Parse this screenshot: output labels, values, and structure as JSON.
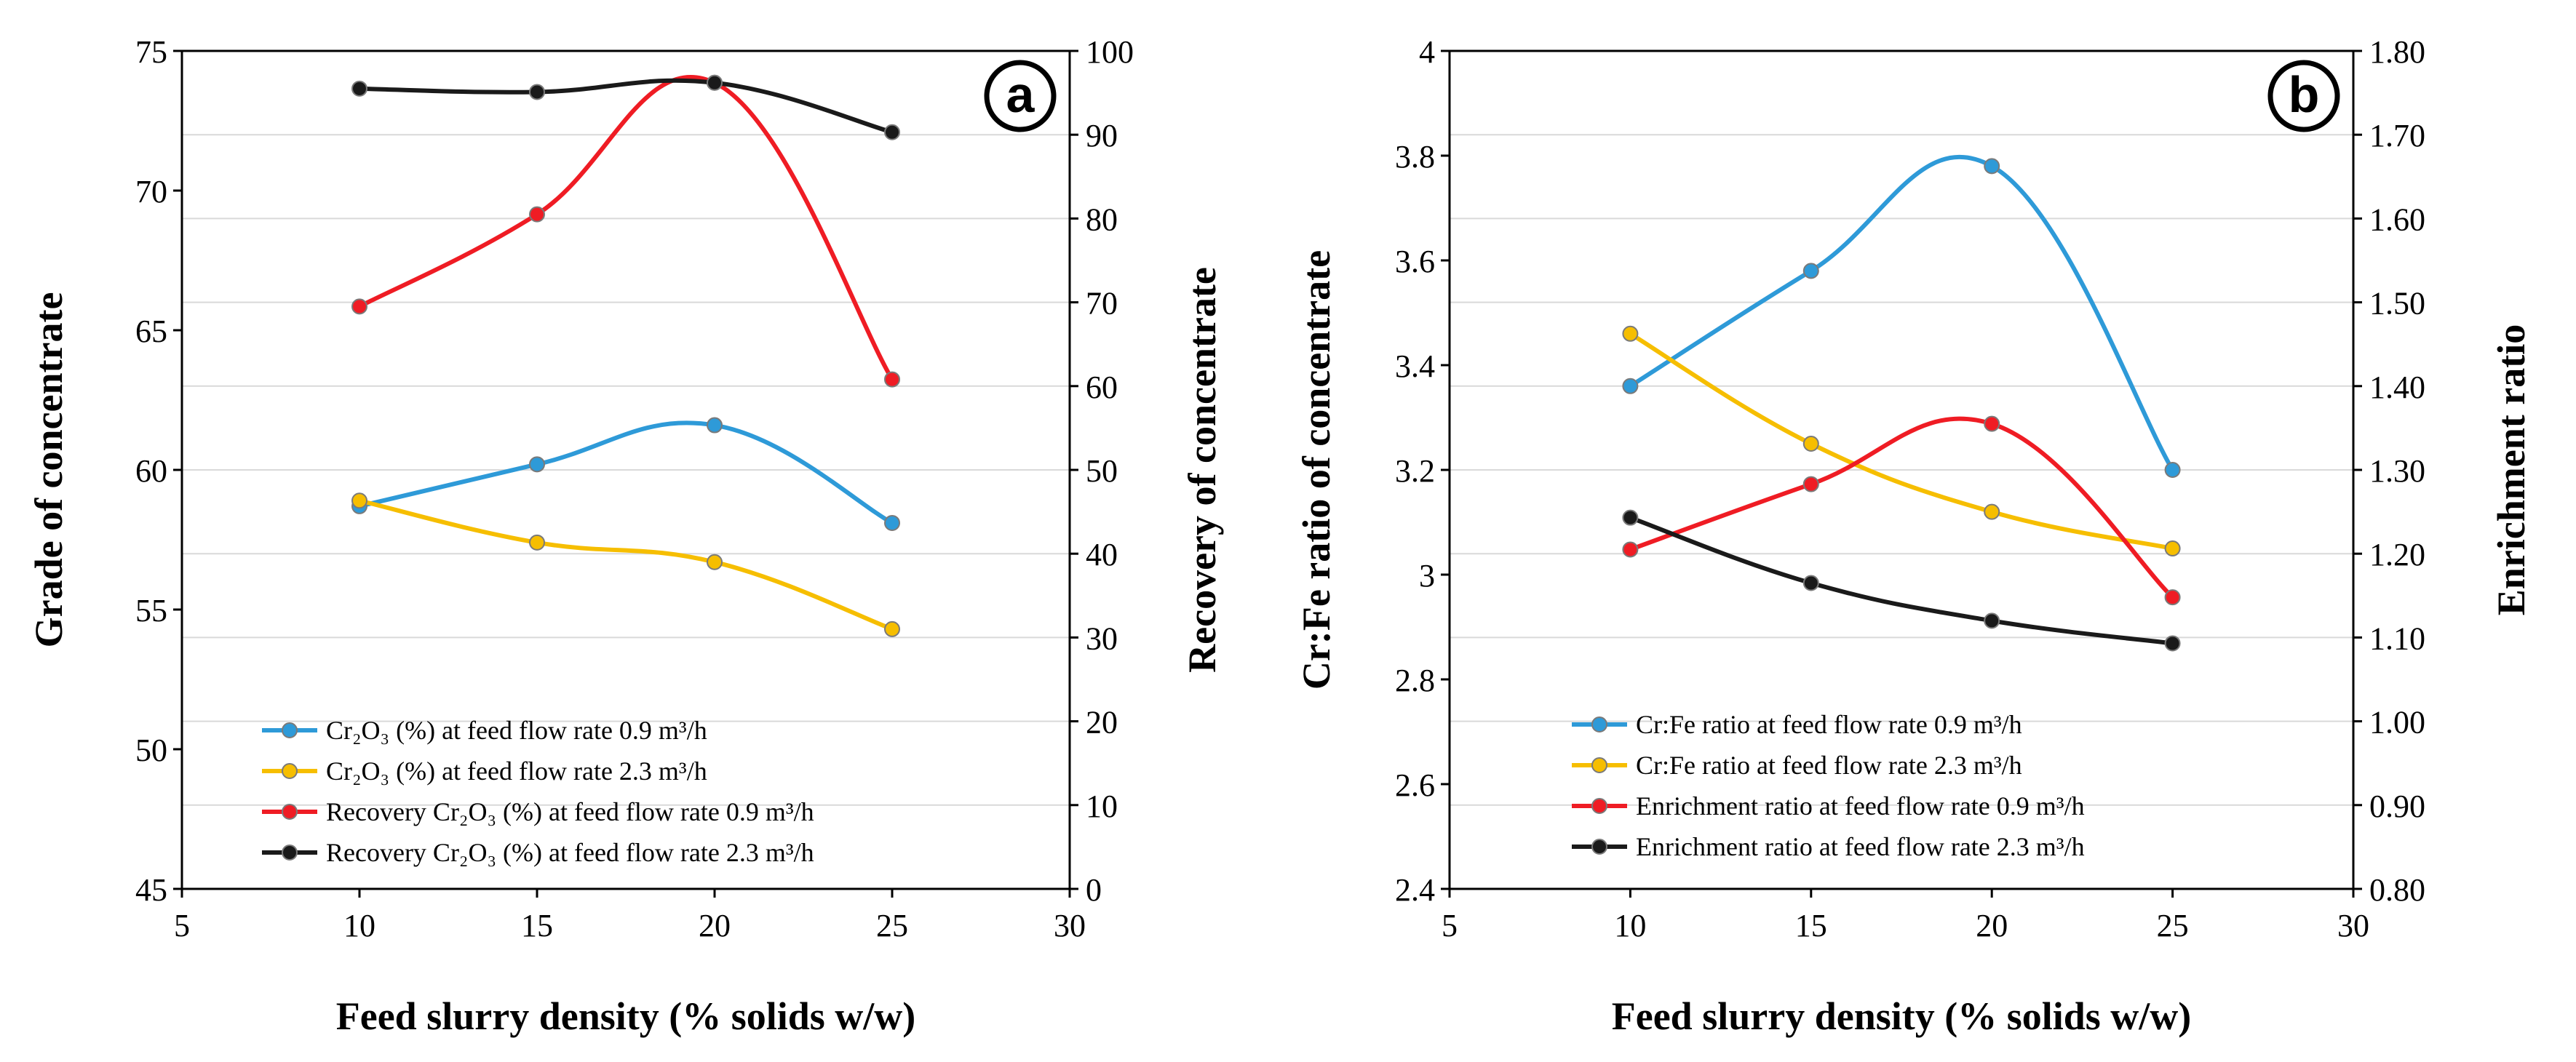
{
  "chart_data": [
    {
      "type": "line",
      "panel_label": "a",
      "x": [
        10,
        15,
        20,
        25
      ],
      "xlabel": "Feed slurry density (% solids w/w)",
      "xlim": [
        5,
        30
      ],
      "xticks": [
        5,
        10,
        15,
        20,
        25,
        30
      ],
      "ylabel": "Grade of concentrate",
      "ylim": [
        45,
        75
      ],
      "yticks": [
        45,
        50,
        55,
        60,
        65,
        70,
        75
      ],
      "y2label": "Recovery of concentrate",
      "y2lim": [
        0,
        100
      ],
      "y2ticks": [
        0,
        10,
        20,
        30,
        40,
        50,
        60,
        70,
        80,
        90,
        100
      ],
      "grid": true,
      "legend_position": "bottom-left",
      "series": [
        {
          "name": "Cr₂O₃ (%) at feed flow rate 0.9 m³/h",
          "axis": "left",
          "color": "#2e9ad8",
          "values": [
            58.7,
            60.2,
            61.6,
            58.1
          ]
        },
        {
          "name": "Cr₂O₃ (%) at feed flow rate 2.3 m³/h",
          "axis": "left",
          "color": "#f6be00",
          "values": [
            58.9,
            57.4,
            56.7,
            54.3
          ]
        },
        {
          "name": "Recovery Cr₂O₃ (%)  at feed flow rate 0.9 m³/h",
          "axis": "right",
          "color": "#ef1c24",
          "values": [
            69.5,
            80.5,
            96.2,
            60.8
          ]
        },
        {
          "name": "Recovery Cr₂O₃ (%)  at feed flow rate 2.3 m³/h",
          "axis": "right",
          "color": "#1a1a1a",
          "values": [
            95.5,
            95.1,
            96.2,
            90.3
          ]
        }
      ]
    },
    {
      "type": "line",
      "panel_label": "b",
      "x": [
        10,
        15,
        20,
        25
      ],
      "xlabel": "Feed slurry density (% solids w/w)",
      "xlim": [
        5,
        30
      ],
      "xticks": [
        5,
        10,
        15,
        20,
        25,
        30
      ],
      "ylabel": "Cr:Fe ratio of concentrate",
      "ylim": [
        2.4,
        4.0
      ],
      "yticks": [
        "2.4",
        "2.6",
        "2.8",
        "3",
        "3.2",
        "3.4",
        "3.6",
        "3.8",
        "4"
      ],
      "y2label": "Enrichment ratio",
      "y2lim": [
        0.8,
        1.8
      ],
      "y2ticks": [
        "0.80",
        "0.90",
        "1.00",
        "1.10",
        "1.20",
        "1.30",
        "1.40",
        "1.50",
        "1.60",
        "1.70",
        "1.80"
      ],
      "grid": true,
      "legend_position": "bottom-left",
      "series": [
        {
          "name": "Cr:Fe ratio  at feed flow rate 0.9 m³/h",
          "axis": "left",
          "color": "#2e9ad8",
          "values": [
            3.36,
            3.58,
            3.78,
            3.2
          ]
        },
        {
          "name": "Cr:Fe ratio  at feed flow rate 2.3 m³/h",
          "axis": "left",
          "color": "#f6be00",
          "values": [
            3.46,
            3.25,
            3.12,
            3.05
          ]
        },
        {
          "name": "Enrichment ratio  at feed flow rate 0.9 m³/h",
          "axis": "right",
          "color": "#ef1c24",
          "values": [
            1.205,
            1.283,
            1.355,
            1.148
          ]
        },
        {
          "name": "Enrichment ratio  at feed flow rate 2.3 m³/h",
          "axis": "right",
          "color": "#1a1a1a",
          "values": [
            1.243,
            1.165,
            1.12,
            1.093
          ]
        }
      ]
    }
  ]
}
